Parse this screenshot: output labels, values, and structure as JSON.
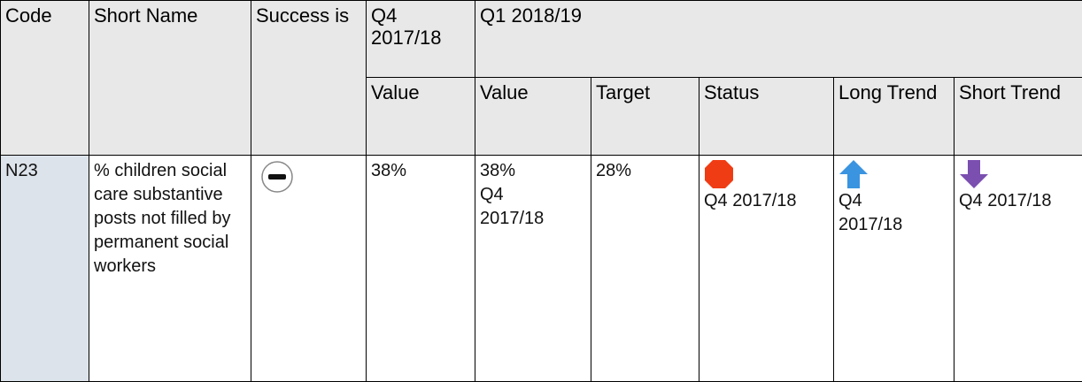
{
  "header": {
    "code": "Code",
    "short_name": "Short Name",
    "success_is": "Success is",
    "previous_period": "Q4 2017/18",
    "current_period": "Q1 2018/19"
  },
  "subheader": [
    "Value",
    "Value",
    "Target",
    "Status",
    "Long Trend",
    "Short Trend"
  ],
  "row": {
    "code": "N23",
    "short_name": "% children social care substantive posts not filled by permanent social workers",
    "previous_value": "38%",
    "current_value": "38%",
    "current_value_period": "Q4 2017/18",
    "target": "28%",
    "status_period": "Q4 2017/18",
    "long_trend_period": "Q4 2017/18",
    "short_trend_period": "Q4 2017/18"
  }
}
